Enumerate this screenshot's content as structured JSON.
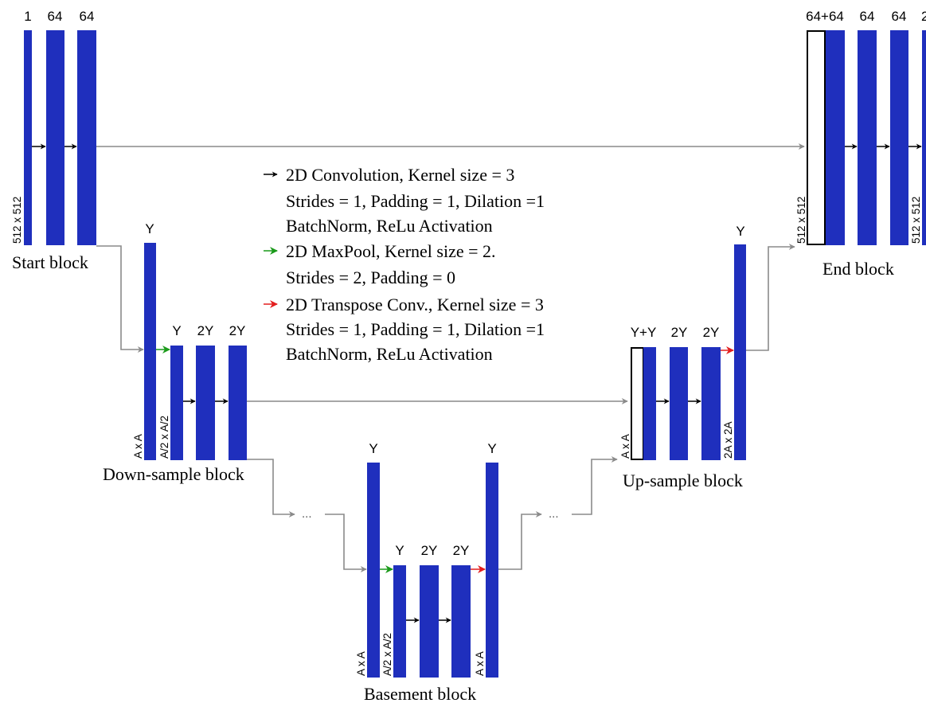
{
  "colors": {
    "layer": "#1f2fbd",
    "conv_arrow": "#000000",
    "maxpool_arrow": "#1a9a1a",
    "transpose_arrow": "#e31e1e",
    "skip_line": "#8a8a8a"
  },
  "legend": [
    {
      "arrow": "conv_arrow",
      "lines": [
        "2D Convolution, Kernel size = 3",
        "Strides = 1, Padding = 1, Dilation =1",
        "BatchNorm, ReLu Activation"
      ]
    },
    {
      "arrow": "maxpool_arrow",
      "lines": [
        "2D MaxPool, Kernel size = 2.",
        "Strides = 2, Padding = 0"
      ]
    },
    {
      "arrow": "transpose_arrow",
      "lines": [
        "2D Transpose Conv., Kernel size = 3",
        "Strides = 1, Padding = 1, Dilation =1",
        "BatchNorm, ReLu Activation"
      ]
    }
  ],
  "blocks": {
    "start": {
      "title": "Start block",
      "size_label": "512 x 512",
      "channels": [
        "1",
        "64",
        "64"
      ]
    },
    "down": {
      "title": "Down-sample block",
      "channels": [
        "Y",
        "Y",
        "2Y",
        "2Y"
      ],
      "size_labels": [
        "A x A",
        "A/2 x A/2"
      ]
    },
    "basement": {
      "title": "Basement block",
      "channels": [
        "Y",
        "Y",
        "2Y",
        "2Y",
        "Y"
      ],
      "size_labels": [
        "A x A",
        "A/2 x A/2",
        "A x A"
      ]
    },
    "up": {
      "title": "Up-sample block",
      "channels": [
        "Y+Y",
        "2Y",
        "2Y",
        "Y"
      ],
      "size_labels": [
        "A x A",
        "2A x 2A"
      ]
    },
    "end": {
      "title": "End block",
      "channels": [
        "64+64",
        "64",
        "64",
        "2"
      ],
      "size_labels": [
        "512 x 512",
        "512 x 512"
      ]
    }
  },
  "ellipsis": "..."
}
